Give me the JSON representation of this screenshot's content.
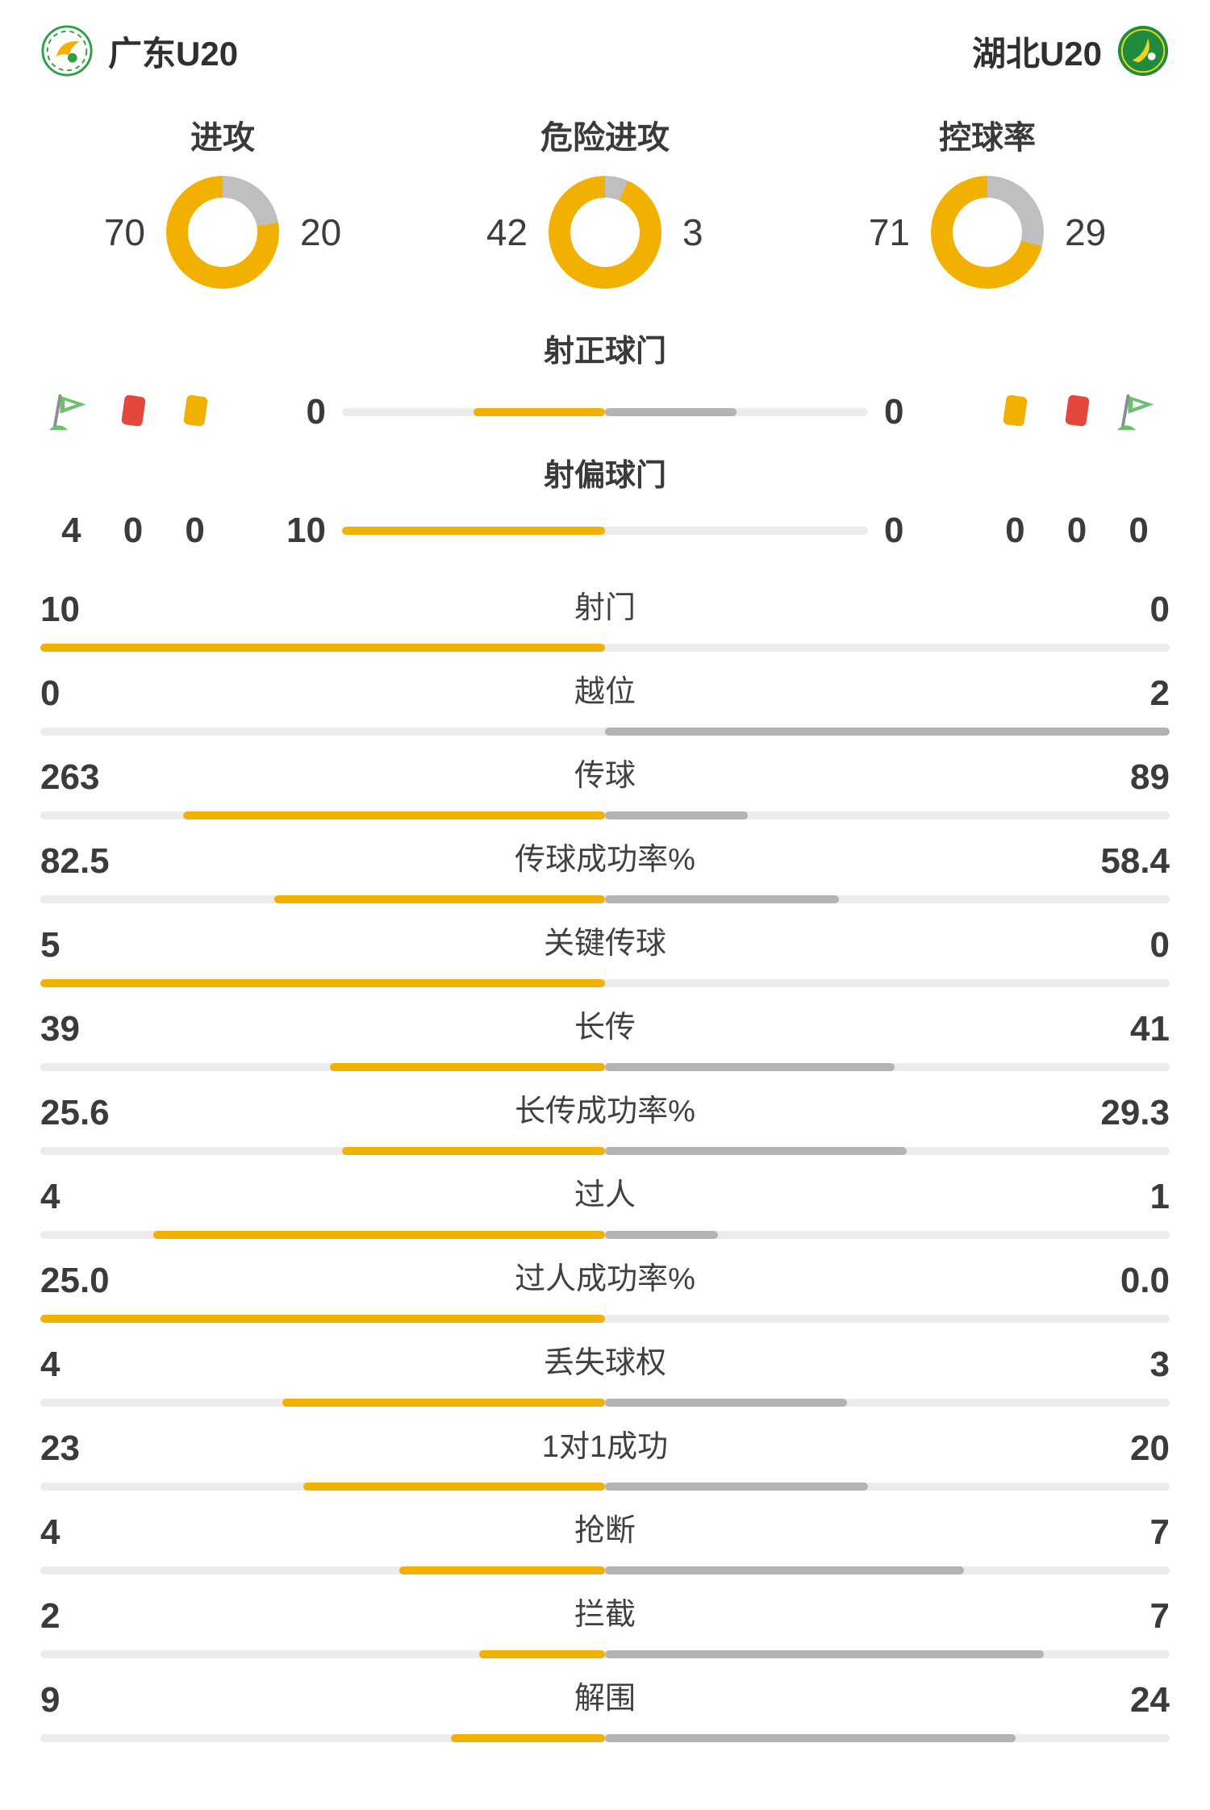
{
  "colors": {
    "accent": "#F2B101",
    "away_bar": "#B3B3B3",
    "donut_gray": "#BFBFBF",
    "track": "#ECECEC",
    "red_card": "#E2483D",
    "yellow_card": "#F2B101",
    "flag_green": "#6FBF73",
    "text_dark": "#333333"
  },
  "header": {
    "home": {
      "name": "广东U20",
      "logo_icon": "home-team-crest"
    },
    "away": {
      "name": "湖北U20",
      "logo_icon": "away-team-crest"
    }
  },
  "donuts": [
    {
      "label": "进攻",
      "home": 70,
      "away": 20
    },
    {
      "label": "危险进攻",
      "home": 42,
      "away": 3
    },
    {
      "label": "控球率",
      "home": 71,
      "away": 29
    }
  ],
  "discipline": {
    "home": {
      "icons": [
        "corner-flag",
        "red-card",
        "yellow-card"
      ],
      "counts": [
        4,
        0,
        0
      ]
    },
    "away": {
      "icons": [
        "yellow-card",
        "red-card",
        "corner-flag"
      ],
      "counts": [
        0,
        0,
        0
      ]
    }
  },
  "shot_rows": [
    {
      "label": "射正球门",
      "home": 0,
      "away": 0
    },
    {
      "label": "射偏球门",
      "home": 10,
      "away": 0
    }
  ],
  "stats": [
    {
      "label": "射门",
      "home": "10",
      "away": "0"
    },
    {
      "label": "越位",
      "home": "0",
      "away": "2"
    },
    {
      "label": "传球",
      "home": "263",
      "away": "89"
    },
    {
      "label": "传球成功率%",
      "home": "82.5",
      "away": "58.4"
    },
    {
      "label": "关键传球",
      "home": "5",
      "away": "0"
    },
    {
      "label": "长传",
      "home": "39",
      "away": "41"
    },
    {
      "label": "长传成功率%",
      "home": "25.6",
      "away": "29.3"
    },
    {
      "label": "过人",
      "home": "4",
      "away": "1"
    },
    {
      "label": "过人成功率%",
      "home": "25.0",
      "away": "0.0"
    },
    {
      "label": "丢失球权",
      "home": "4",
      "away": "3"
    },
    {
      "label": "1对1成功",
      "home": "23",
      "away": "20"
    },
    {
      "label": "抢断",
      "home": "4",
      "away": "7"
    },
    {
      "label": "拦截",
      "home": "2",
      "away": "7"
    },
    {
      "label": "解围",
      "home": "9",
      "away": "24"
    }
  ],
  "chart_data": [
    {
      "type": "pie",
      "title": "进攻",
      "legend_entries": [
        "广东U20",
        "湖北U20"
      ],
      "values": [
        70,
        20
      ]
    },
    {
      "type": "pie",
      "title": "危险进攻",
      "legend_entries": [
        "广东U20",
        "湖北U20"
      ],
      "values": [
        42,
        3
      ]
    },
    {
      "type": "pie",
      "title": "控球率",
      "legend_entries": [
        "广东U20",
        "湖北U20"
      ],
      "values": [
        71,
        29
      ]
    },
    {
      "type": "bar",
      "categories": [
        "射正球门",
        "射偏球门",
        "射门",
        "越位",
        "传球",
        "传球成功率%",
        "关键传球",
        "长传",
        "长传成功率%",
        "过人",
        "过人成功率%",
        "丢失球权",
        "1对1成功",
        "抢断",
        "拦截",
        "解围"
      ],
      "series": [
        {
          "name": "广东U20",
          "values": [
            0,
            10,
            10,
            0,
            263,
            82.5,
            5,
            39,
            25.6,
            4,
            25.0,
            4,
            23,
            4,
            2,
            9
          ]
        },
        {
          "name": "湖北U20",
          "values": [
            0,
            0,
            0,
            2,
            89,
            58.4,
            0,
            41,
            29.3,
            1,
            0.0,
            3,
            20,
            7,
            7,
            24
          ]
        }
      ]
    }
  ]
}
